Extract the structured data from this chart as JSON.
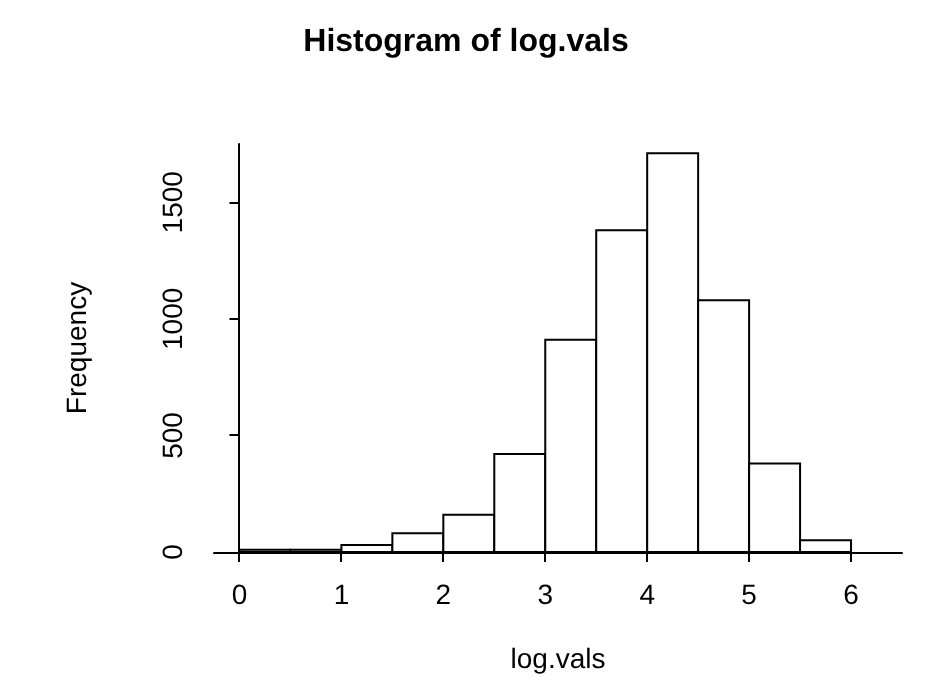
{
  "chart_data": {
    "type": "histogram",
    "title": "Histogram of log.vals",
    "xlabel": "log.vals",
    "ylabel": "Frequency",
    "bins": [
      0,
      0.5,
      1,
      1.5,
      2,
      2.5,
      3,
      3.5,
      4,
      4.5,
      5,
      5.5,
      6
    ],
    "values": [
      10,
      10,
      30,
      80,
      160,
      420,
      910,
      1380,
      1710,
      1080,
      380,
      50
    ],
    "color": "#ffffff",
    "xlim": [
      -0.25,
      6.5
    ],
    "xticks": [
      0,
      1,
      2,
      3,
      4,
      5,
      6
    ],
    "ylim": [
      0,
      1750
    ],
    "yticks": [
      0,
      500,
      1000,
      1500
    ],
    "grid": false
  }
}
